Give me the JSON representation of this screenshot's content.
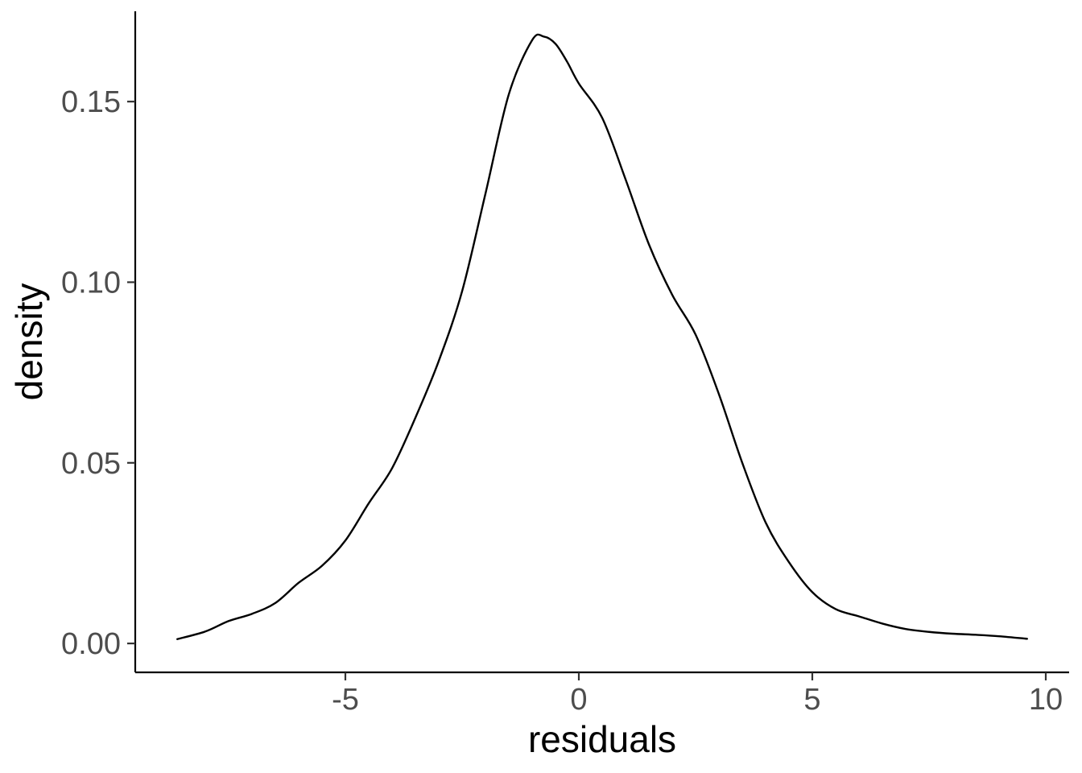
{
  "chart_data": {
    "type": "line",
    "xlabel": "residuals",
    "ylabel": "density",
    "xlim": [
      -9.5,
      10.5
    ],
    "ylim": [
      -0.008,
      0.175
    ],
    "x_ticks": [
      -5,
      0,
      5,
      10
    ],
    "x_tick_labels": [
      "-5",
      "0",
      "5",
      "10"
    ],
    "y_ticks": [
      0.0,
      0.05,
      0.1,
      0.15
    ],
    "y_tick_labels": [
      "0.00",
      "0.05",
      "0.10",
      "0.15"
    ],
    "grid": false,
    "legend": "none",
    "series": [
      {
        "x": [
          -8.6,
          -8.0,
          -7.5,
          -7.0,
          -6.5,
          -6.0,
          -5.5,
          -5.0,
          -4.5,
          -4.0,
          -3.5,
          -3.0,
          -2.5,
          -2.0,
          -1.5,
          -1.0,
          -0.75,
          -0.5,
          -0.25,
          0.0,
          0.5,
          1.0,
          1.5,
          2.0,
          2.5,
          3.0,
          3.5,
          4.0,
          4.5,
          5.0,
          5.5,
          6.0,
          6.5,
          7.0,
          7.5,
          8.0,
          8.5,
          9.0,
          9.6
        ],
        "y": [
          0.0012,
          0.0033,
          0.0062,
          0.0082,
          0.0112,
          0.0168,
          0.0215,
          0.0285,
          0.0388,
          0.0485,
          0.0625,
          0.0782,
          0.0975,
          0.1245,
          0.152,
          0.167,
          0.168,
          0.166,
          0.161,
          0.155,
          0.1455,
          0.1285,
          0.1105,
          0.0965,
          0.0855,
          0.069,
          0.05,
          0.0335,
          0.0225,
          0.0142,
          0.0095,
          0.0075,
          0.0055,
          0.004,
          0.0032,
          0.0027,
          0.0024,
          0.002,
          0.0013
        ],
        "color": "#000000"
      }
    ]
  }
}
